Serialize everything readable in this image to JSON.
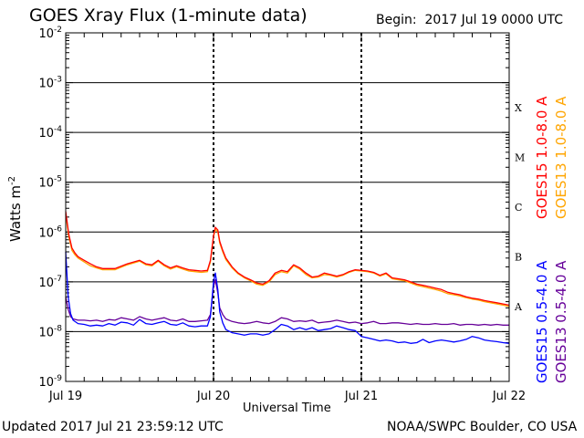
{
  "header": {
    "title": "GOES Xray Flux (1-minute data)",
    "begin_label": "Begin:",
    "begin_value": "2017 Jul 19 0000 UTC"
  },
  "footer": {
    "updated": "Updated 2017 Jul 21 23:59:12 UTC",
    "credit": "NOAA/SWPC Boulder, CO USA"
  },
  "chart_data": {
    "type": "line",
    "title": "GOES Xray Flux (1-minute data)",
    "xlabel": "Universal Time",
    "ylabel": "Watts m",
    "ylabel_superscript": "-2",
    "yscale": "log",
    "ylim": [
      1e-09,
      0.01
    ],
    "y_ticks": [
      {
        "value": 0.01,
        "base": "10",
        "exp": "-2"
      },
      {
        "value": 0.001,
        "base": "10",
        "exp": "-3"
      },
      {
        "value": 0.0001,
        "base": "10",
        "exp": "-4"
      },
      {
        "value": 1e-05,
        "base": "10",
        "exp": "-5"
      },
      {
        "value": 1e-06,
        "base": "10",
        "exp": "-6"
      },
      {
        "value": 1e-07,
        "base": "10",
        "exp": "-7"
      },
      {
        "value": 1e-08,
        "base": "10",
        "exp": "-8"
      },
      {
        "value": 1e-09,
        "base": "10",
        "exp": "-9"
      }
    ],
    "xlim": [
      0,
      72
    ],
    "x_ticks": [
      {
        "hour": 0,
        "label": "Jul 19"
      },
      {
        "hour": 24,
        "label": "Jul 20"
      },
      {
        "hour": 48,
        "label": "Jul 21"
      },
      {
        "hour": 72,
        "label": "Jul 22"
      }
    ],
    "flare_classes": [
      {
        "label": "X",
        "value": 0.0001
      },
      {
        "label": "M",
        "value": 1e-05
      },
      {
        "label": "C",
        "value": 1e-06
      },
      {
        "label": "B",
        "value": 1e-07
      },
      {
        "label": "A",
        "value": 1e-08
      }
    ],
    "grid": true,
    "legend_position": "right",
    "series": [
      {
        "name": "GOES13 1.0-8.0 A",
        "color": "#ffa500",
        "x": [
          0,
          0.5,
          1,
          1.5,
          2,
          3,
          4,
          5,
          6,
          8,
          10,
          12,
          13,
          14,
          15,
          16,
          17,
          18,
          19,
          20,
          21,
          22,
          23,
          23.5,
          24,
          24.3,
          24.7,
          25,
          25.5,
          26,
          27,
          28,
          29,
          30,
          31,
          32,
          33,
          34,
          35,
          36,
          37,
          38,
          39,
          40,
          41,
          42,
          43,
          44,
          45,
          46,
          47,
          48,
          49,
          50,
          51,
          52,
          53,
          54,
          55,
          56,
          57,
          58,
          59,
          60,
          61,
          62,
          63,
          64,
          65,
          66,
          67,
          68,
          69,
          70,
          71,
          72
        ],
        "y": [
          2.3e-06,
          8e-07,
          4.3e-07,
          3.5e-07,
          3e-07,
          2.5e-07,
          2.1e-07,
          1.9e-07,
          1.75e-07,
          1.75e-07,
          2.2e-07,
          2.6e-07,
          2.2e-07,
          2.1e-07,
          2.6e-07,
          2.1e-07,
          1.8e-07,
          2e-07,
          1.8e-07,
          1.65e-07,
          1.6e-07,
          1.55e-07,
          1.6e-07,
          2.5e-07,
          8e-07,
          1.15e-06,
          1e-06,
          6e-07,
          4e-07,
          2.8e-07,
          1.9e-07,
          1.45e-07,
          1.2e-07,
          1.05e-07,
          9e-08,
          8.5e-08,
          1e-07,
          1.4e-07,
          1.6e-07,
          1.5e-07,
          2.1e-07,
          1.8e-07,
          1.4e-07,
          1.2e-07,
          1.25e-07,
          1.4e-07,
          1.35e-07,
          1.25e-07,
          1.35e-07,
          1.55e-07,
          1.7e-07,
          1.65e-07,
          1.6e-07,
          1.5e-07,
          1.3e-07,
          1.45e-07,
          1.15e-07,
          1.1e-07,
          1.05e-07,
          9.5e-08,
          8.5e-08,
          8e-08,
          7.5e-08,
          7e-08,
          6.5e-08,
          5.8e-08,
          5.5e-08,
          5.2e-08,
          4.8e-08,
          4.5e-08,
          4.3e-08,
          4e-08,
          3.8e-08,
          3.6e-08,
          3.4e-08,
          3.2e-08
        ]
      },
      {
        "name": "GOES15 1.0-8.0 A",
        "color": "#ff0000",
        "x": [
          0,
          0.5,
          1,
          1.5,
          2,
          3,
          4,
          5,
          6,
          8,
          10,
          12,
          13,
          14,
          15,
          16,
          17,
          18,
          19,
          20,
          21,
          22,
          23,
          23.5,
          24,
          24.3,
          24.7,
          25,
          25.5,
          26,
          27,
          28,
          29,
          30,
          31,
          32,
          33,
          34,
          35,
          36,
          37,
          38,
          39,
          40,
          41,
          42,
          43,
          44,
          45,
          46,
          47,
          48,
          49,
          50,
          51,
          52,
          53,
          54,
          55,
          56,
          57,
          58,
          59,
          60,
          61,
          62,
          63,
          64,
          65,
          66,
          67,
          68,
          69,
          70,
          71,
          72
        ],
        "y": [
          2.6e-06,
          9e-07,
          4.8e-07,
          3.8e-07,
          3.2e-07,
          2.7e-07,
          2.3e-07,
          2e-07,
          1.85e-07,
          1.85e-07,
          2.3e-07,
          2.7e-07,
          2.3e-07,
          2.2e-07,
          2.7e-07,
          2.2e-07,
          1.9e-07,
          2.1e-07,
          1.9e-07,
          1.75e-07,
          1.7e-07,
          1.65e-07,
          1.7e-07,
          2.7e-07,
          8.5e-07,
          1.25e-06,
          1.1e-06,
          6.5e-07,
          4.3e-07,
          3e-07,
          2e-07,
          1.5e-07,
          1.25e-07,
          1.1e-07,
          9.5e-08,
          9e-08,
          1.05e-07,
          1.5e-07,
          1.7e-07,
          1.6e-07,
          2.2e-07,
          1.9e-07,
          1.5e-07,
          1.25e-07,
          1.3e-07,
          1.5e-07,
          1.4e-07,
          1.3e-07,
          1.4e-07,
          1.6e-07,
          1.75e-07,
          1.7e-07,
          1.65e-07,
          1.55e-07,
          1.35e-07,
          1.5e-07,
          1.2e-07,
          1.15e-07,
          1.1e-07,
          1e-07,
          9e-08,
          8.5e-08,
          8e-08,
          7.5e-08,
          7e-08,
          6.2e-08,
          5.8e-08,
          5.5e-08,
          5e-08,
          4.7e-08,
          4.5e-08,
          4.2e-08,
          4e-08,
          3.8e-08,
          3.6e-08,
          3.4e-08
        ]
      },
      {
        "name": "GOES13 0.5-4.0 A",
        "color": "#660099",
        "x": [
          0,
          0.4,
          0.8,
          1.2,
          2,
          3,
          4,
          5,
          6,
          7,
          8,
          9,
          10,
          11,
          12,
          13,
          14,
          15,
          16,
          17,
          18,
          19,
          20,
          21,
          22,
          23,
          23.5,
          24,
          24.3,
          24.7,
          25,
          25.5,
          26,
          27,
          28,
          29,
          30,
          31,
          32,
          33,
          34,
          35,
          36,
          37,
          38,
          39,
          40,
          41,
          42,
          43,
          44,
          45,
          46,
          47,
          48,
          49,
          50,
          51,
          52,
          53,
          54,
          55,
          56,
          57,
          58,
          59,
          60,
          61,
          62,
          63,
          64,
          65,
          66,
          67,
          68,
          69,
          70,
          71,
          72
        ],
        "y": [
          5e-08,
          2.8e-08,
          2e-08,
          1.8e-08,
          1.7e-08,
          1.7e-08,
          1.65e-08,
          1.7e-08,
          1.6e-08,
          1.75e-08,
          1.7e-08,
          1.9e-08,
          1.8e-08,
          1.7e-08,
          2e-08,
          1.8e-08,
          1.7e-08,
          1.8e-08,
          1.9e-08,
          1.7e-08,
          1.65e-08,
          1.8e-08,
          1.6e-08,
          1.6e-08,
          1.65e-08,
          1.7e-08,
          2.2e-08,
          8e-08,
          1.1e-07,
          6e-08,
          3e-08,
          2.2e-08,
          1.8e-08,
          1.6e-08,
          1.5e-08,
          1.45e-08,
          1.5e-08,
          1.6e-08,
          1.5e-08,
          1.45e-08,
          1.6e-08,
          1.9e-08,
          1.8e-08,
          1.6e-08,
          1.65e-08,
          1.6e-08,
          1.7e-08,
          1.5e-08,
          1.55e-08,
          1.6e-08,
          1.7e-08,
          1.6e-08,
          1.5e-08,
          1.55e-08,
          1.45e-08,
          1.5e-08,
          1.6e-08,
          1.45e-08,
          1.45e-08,
          1.5e-08,
          1.5e-08,
          1.45e-08,
          1.4e-08,
          1.45e-08,
          1.4e-08,
          1.4e-08,
          1.45e-08,
          1.4e-08,
          1.4e-08,
          1.45e-08,
          1.35e-08,
          1.4e-08,
          1.4e-08,
          1.35e-08,
          1.4e-08,
          1.35e-08,
          1.4e-08,
          1.35e-08,
          1.35e-08
        ]
      },
      {
        "name": "GOES15 0.5-4.0 A",
        "color": "#0000ff",
        "x": [
          0,
          0.4,
          0.8,
          1.2,
          2,
          3,
          4,
          5,
          6,
          7,
          8,
          9,
          10,
          11,
          12,
          13,
          14,
          15,
          16,
          17,
          18,
          19,
          20,
          21,
          22,
          23,
          23.5,
          24,
          24.3,
          24.7,
          25,
          25.5,
          26,
          27,
          28,
          29,
          30,
          31,
          32,
          33,
          34,
          35,
          36,
          37,
          38,
          39,
          40,
          41,
          42,
          43,
          44,
          45,
          46,
          47,
          48,
          49,
          50,
          51,
          52,
          53,
          54,
          55,
          56,
          57,
          58,
          59,
          60,
          61,
          62,
          63,
          64,
          65,
          66,
          67,
          68,
          69,
          70,
          71,
          72
        ],
        "y": [
          4e-07,
          5e-08,
          2.3e-08,
          1.7e-08,
          1.45e-08,
          1.4e-08,
          1.3e-08,
          1.35e-08,
          1.3e-08,
          1.45e-08,
          1.35e-08,
          1.55e-08,
          1.5e-08,
          1.35e-08,
          1.75e-08,
          1.45e-08,
          1.4e-08,
          1.5e-08,
          1.6e-08,
          1.4e-08,
          1.35e-08,
          1.5e-08,
          1.3e-08,
          1.25e-08,
          1.3e-08,
          1.3e-08,
          2e-08,
          1e-07,
          1.5e-07,
          7e-08,
          2.5e-08,
          1.5e-08,
          1.1e-08,
          9.5e-09,
          9e-09,
          8.5e-09,
          9e-09,
          9e-09,
          8.5e-09,
          9e-09,
          1.1e-08,
          1.4e-08,
          1.3e-08,
          1.1e-08,
          1.2e-08,
          1.1e-08,
          1.2e-08,
          1.05e-08,
          1.1e-08,
          1.15e-08,
          1.3e-08,
          1.2e-08,
          1.1e-08,
          1.05e-08,
          8e-09,
          7.5e-09,
          7e-09,
          6.5e-09,
          6.8e-09,
          6.5e-09,
          6e-09,
          6.2e-09,
          5.8e-09,
          6e-09,
          7e-09,
          6e-09,
          6.5e-09,
          6.8e-09,
          6.5e-09,
          6.2e-09,
          6.5e-09,
          7e-09,
          8e-09,
          7.5e-09,
          6.8e-09,
          6.5e-09,
          6.3e-09,
          6e-09,
          5.8e-09
        ]
      }
    ]
  }
}
